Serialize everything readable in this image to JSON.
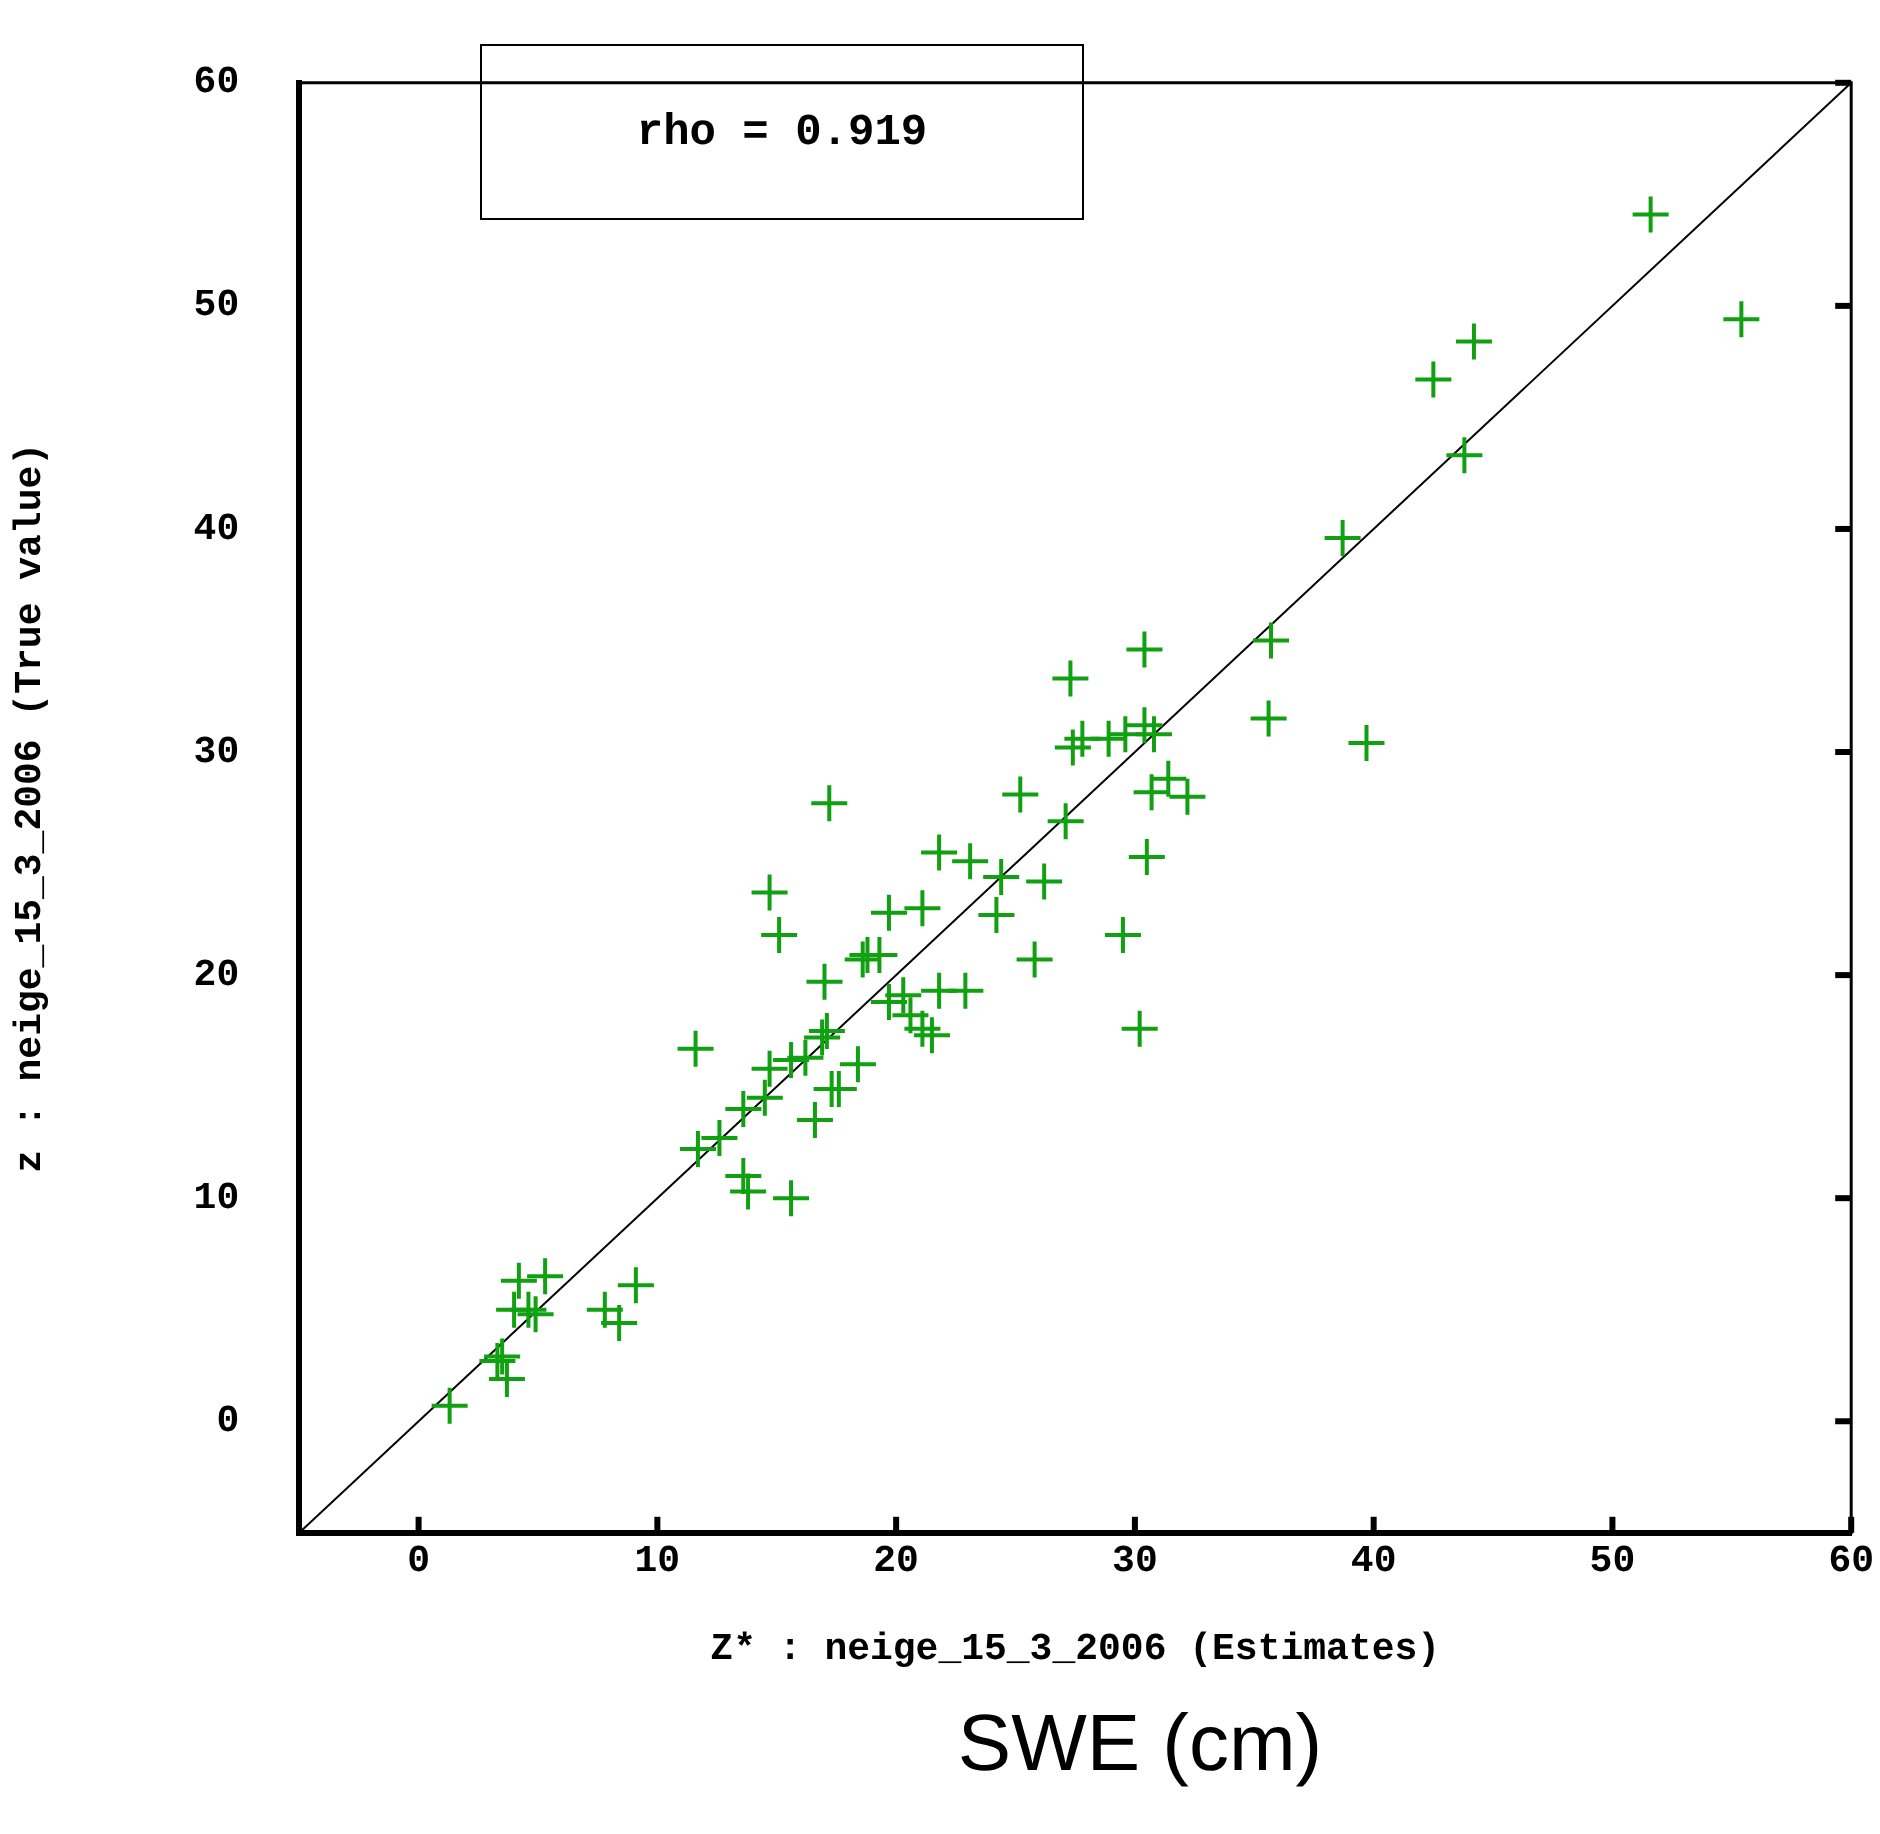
{
  "chart_data": {
    "type": "scatter",
    "xlabel": "Z* : neige_15_3_2006 (Estimates)",
    "ylabel": "z : neige_15_3_2006 (True value)",
    "annotations": [
      "rho = 0.919",
      "SWE (cm)"
    ],
    "xlim": [
      -5,
      60
    ],
    "xticks": [
      0,
      10,
      20,
      30,
      40,
      50,
      60
    ],
    "ylim": [
      -5,
      60
    ],
    "yticks": [
      0,
      10,
      20,
      30,
      40,
      50,
      60
    ],
    "grid": false,
    "legend": false,
    "marker": "cross",
    "series": [
      {
        "color": "#11a011",
        "x": [
          1.3,
          3.3,
          3.7,
          3.5,
          4.2,
          5.3,
          4.0,
          4.6,
          4.9,
          7.8,
          8.4,
          9.1,
          11.6,
          11.7,
          12.6,
          13.6,
          13.6,
          13.8,
          15.6,
          14.7,
          15.6,
          14.5,
          16.2,
          16.9,
          16.6,
          17.3,
          17.6,
          18.4,
          17.2,
          14.7,
          15.1,
          17.0,
          19.7,
          21.1,
          18.8,
          19.3,
          18.6,
          21.8,
          23.1,
          24.4,
          26.2,
          24.2,
          25.8,
          25.2,
          27.1,
          27.3,
          30.4,
          27.4,
          27.8,
          28.9,
          29.6,
          30.4,
          30.8,
          31.4,
          30.7,
          32.2,
          30.5,
          29.5,
          30.2,
          35.7,
          35.6,
          19.7,
          20.3,
          20.6,
          21.5,
          21.1,
          21.8,
          22.9,
          17.1,
          38.7,
          43.8,
          42.5,
          44.2,
          51.6,
          55.4,
          39.7
        ],
        "values": [
          0.7,
          2.7,
          1.9,
          2.9,
          6.3,
          6.5,
          5.0,
          5.0,
          4.8,
          5.0,
          4.4,
          6.1,
          16.7,
          12.2,
          12.7,
          14.0,
          11.0,
          10.3,
          10.0,
          15.8,
          16.2,
          14.5,
          16.3,
          17.2,
          13.5,
          14.9,
          14.9,
          16.0,
          27.7,
          23.7,
          21.8,
          19.7,
          22.8,
          23.0,
          20.9,
          20.9,
          20.7,
          25.5,
          25.1,
          24.4,
          24.2,
          22.7,
          20.7,
          28.1,
          26.9,
          33.3,
          34.6,
          30.2,
          30.6,
          30.6,
          30.8,
          31.2,
          30.8,
          28.8,
          28.2,
          28.0,
          25.3,
          21.8,
          17.6,
          35.0,
          31.5,
          18.8,
          19.1,
          18.2,
          17.3,
          17.6,
          19.3,
          19.3,
          17.5,
          39.6,
          43.3,
          46.7,
          48.4,
          54.1,
          49.4,
          30.4
        ]
      },
      {
        "type": "line",
        "color": "#000000",
        "marker": "none",
        "x": [
          -5,
          60
        ],
        "values": [
          -5,
          60
        ]
      }
    ]
  }
}
